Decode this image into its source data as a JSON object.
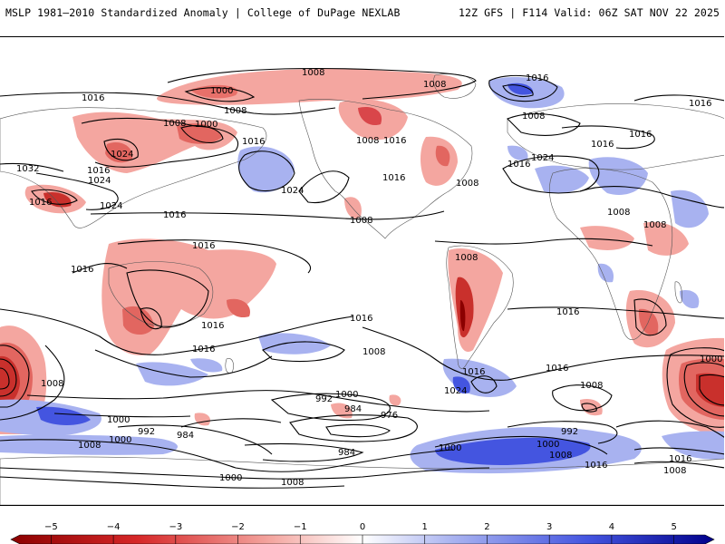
{
  "header": {
    "title_left": "MSLP 1981–2010 Standardized Anomaly | College of DuPage NEXLAB",
    "title_right": "12Z GFS | F114 Valid: 06Z SAT NOV 22 2025"
  },
  "map": {
    "isobar_labels": [
      "1008",
      "1016",
      "1000",
      "1008",
      "1016",
      "1008",
      "1000",
      "1008",
      "1016",
      "1008",
      "1016",
      "1016",
      "1008",
      "1016",
      "1024",
      "1016",
      "1032",
      "1024",
      "1024",
      "1016",
      "1016",
      "1024",
      "1016",
      "1008",
      "1016",
      "1024",
      "1016",
      "1008",
      "1008",
      "1008",
      "1016",
      "1008",
      "1016",
      "1016",
      "1016",
      "1016",
      "1016",
      "1008",
      "1008",
      "1000",
      "992",
      "984",
      "976",
      "1000",
      "992",
      "984",
      "984",
      "1000",
      "992",
      "1008",
      "1000",
      "1008",
      "1016",
      "1024",
      "1016",
      "1008",
      "1000",
      "1016",
      "1008",
      "1016",
      "1000",
      "1008",
      "1000"
    ]
  },
  "colorbar": {
    "ticks": [
      "−5",
      "−4",
      "−3",
      "−2",
      "−1",
      "0",
      "1",
      "2",
      "3",
      "4",
      "5"
    ],
    "tick_values": [
      -5,
      -4,
      -3,
      -2,
      -1,
      0,
      1,
      2,
      3,
      4,
      5
    ],
    "range": [
      -5.5,
      5.5
    ],
    "colors": {
      "neg_strong": "#8b0000",
      "neg": "#d62728",
      "neg_light": "#f4a6a0",
      "neutral": "#ffffff",
      "pos_light": "#a8b2f0",
      "pos": "#4455e0",
      "pos_strong": "#00008b"
    }
  }
}
